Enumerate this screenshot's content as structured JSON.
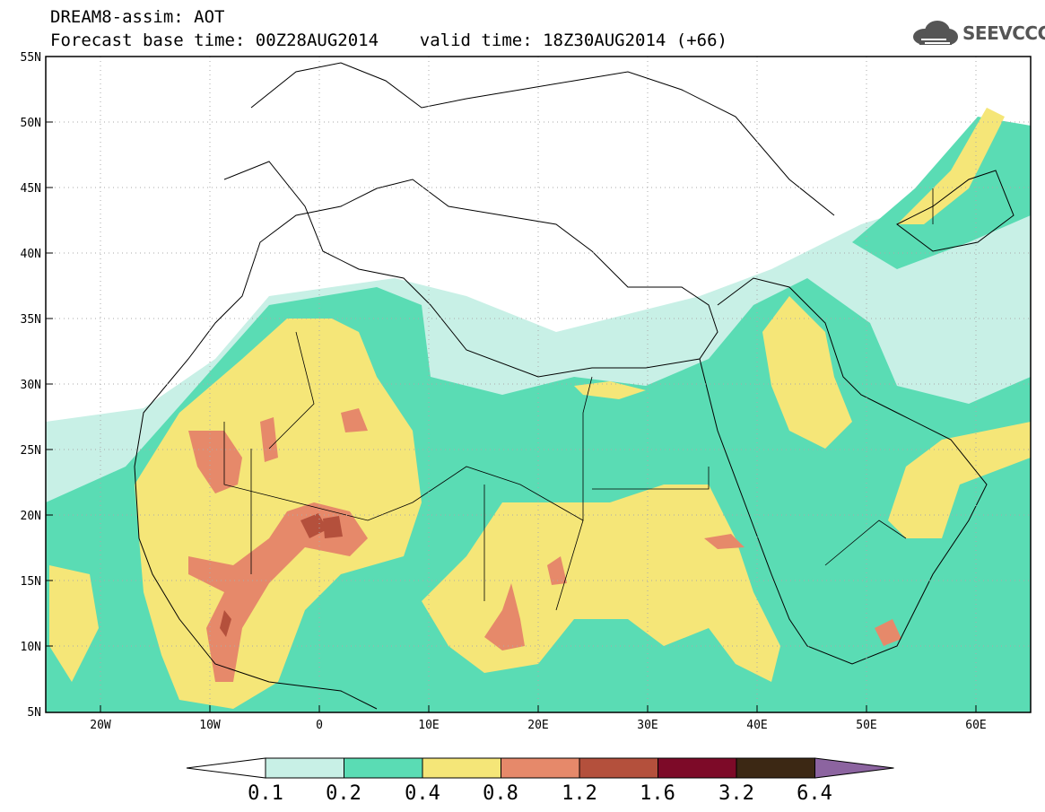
{
  "header": {
    "title_line1": "DREAM8-assim: AOT",
    "title_line2": "Forecast base time: 00Z28AUG2014    valid time: 18Z30AUG2014 (+66)"
  },
  "logo": {
    "text": "SEEVCCC",
    "icon": "cloud-icon"
  },
  "map": {
    "lon_ticks": [
      "20W",
      "10W",
      "0",
      "10E",
      "20E",
      "30E",
      "40E",
      "50E",
      "60E"
    ],
    "lat_ticks": [
      "55N",
      "50N",
      "45N",
      "40N",
      "35N",
      "30N",
      "25N",
      "20N",
      "15N",
      "10N",
      "5N"
    ]
  },
  "colorbar": {
    "labels": [
      "0.1",
      "0.2",
      "0.4",
      "0.8",
      "1.2",
      "1.6",
      "3.2",
      "6.4"
    ],
    "colors": [
      "#ffffff",
      "#c8f0e6",
      "#5adcb4",
      "#f5e678",
      "#e6896a",
      "#b4503c",
      "#7d0a28",
      "#3c2814",
      "#8c64a0"
    ]
  }
}
